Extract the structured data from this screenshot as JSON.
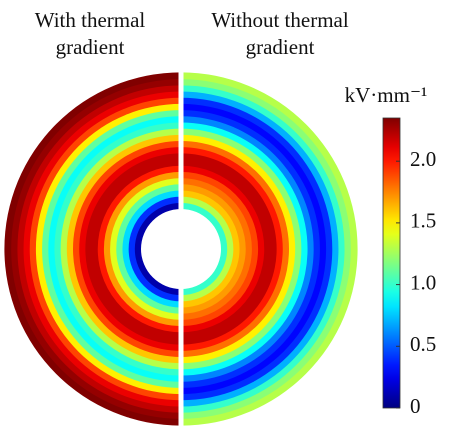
{
  "chart_data": {
    "type": "radial-field",
    "panels": [
      {
        "title": [
          "With thermal",
          "gradient"
        ],
        "side": "left",
        "values": [
          0.1,
          0.4,
          0.8,
          1.1,
          1.4,
          1.7,
          2.0,
          2.2,
          2.2,
          2.1,
          1.9,
          1.6,
          1.3,
          1.0,
          0.9,
          1.1,
          1.5,
          1.9,
          2.1,
          2.2,
          2.3,
          2.4
        ]
      },
      {
        "title": [
          "Without thermal",
          "gradient"
        ],
        "side": "right",
        "values": [
          1.0,
          1.3,
          1.6,
          1.7,
          1.8,
          1.9,
          2.1,
          2.2,
          2.2,
          2.0,
          1.8,
          1.5,
          1.2,
          0.9,
          0.6,
          0.4,
          0.3,
          0.4,
          0.7,
          1.0,
          1.2,
          1.3
        ]
      }
    ],
    "colorbar": {
      "label": "kV·mm⁻¹",
      "colormap": "jet",
      "lim": [
        0,
        2.35
      ],
      "ticks": [
        0,
        {
          "value": 0.5,
          "label": "0.5"
        },
        {
          "value": 1,
          "label": "1.0"
        },
        1.5,
        {
          "value": 2,
          "label": "2.0"
        }
      ]
    }
  }
}
